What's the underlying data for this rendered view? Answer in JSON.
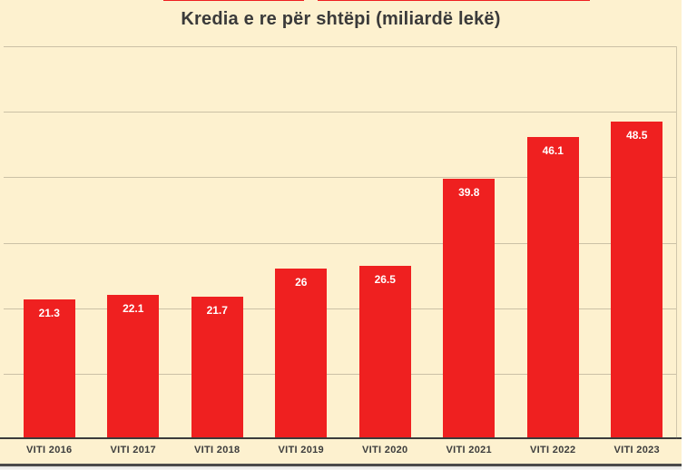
{
  "title": "Kredia e re për shtëpi (miliardë lekë)",
  "chart_data": {
    "type": "bar",
    "title": "Kredia e re për shtëpi (miliardë lekë)",
    "categories": [
      "VITI 2016",
      "VITI 2017",
      "VITI 2018",
      "VITI 2019",
      "VITI 2020",
      "VITI 2021",
      "VITI 2022",
      "VITI 2023"
    ],
    "values": [
      21.3,
      22.1,
      21.7,
      26,
      26.5,
      39.8,
      46.1,
      48.5
    ],
    "xlabel": "",
    "ylabel": "",
    "ylim": [
      0,
      60
    ],
    "gridline_step": 10,
    "grid": "horizontal",
    "legend": "none"
  },
  "colors": {
    "background": "#fdf1cf",
    "bar": "#ef2020",
    "title_text": "#3a3a3a",
    "axis_label_text": "#3c3c3c",
    "value_label_text": "#ffffff",
    "gridline": "#a89f8e",
    "axis_line": "#3b3b3b",
    "bottom_border": "#4a4a4a",
    "top_accent": "#ef2020"
  }
}
